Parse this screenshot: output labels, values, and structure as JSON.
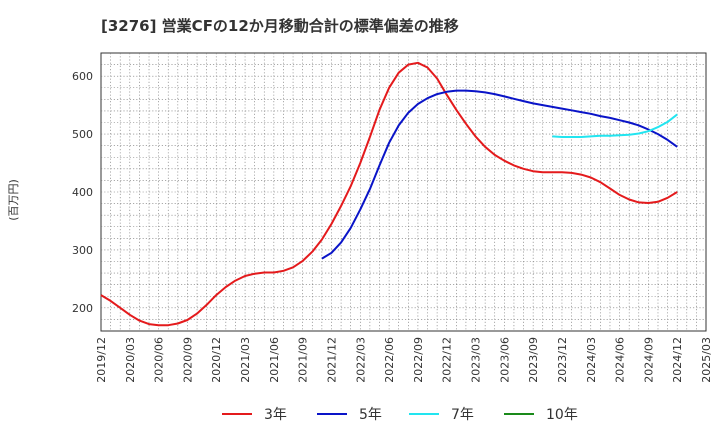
{
  "chart_data": {
    "type": "line",
    "title": "[3276]  営業CFの12か月移動合計の標準偏差の推移",
    "ylabel": "(百万円)",
    "xlabel": "",
    "x_ticks": [
      "2019/12",
      "2020/03",
      "2020/06",
      "2020/09",
      "2020/12",
      "2021/03",
      "2021/06",
      "2021/09",
      "2021/12",
      "2022/03",
      "2022/06",
      "2022/09",
      "2022/12",
      "2023/03",
      "2023/06",
      "2023/09",
      "2023/12",
      "2024/03",
      "2024/06",
      "2024/09",
      "2024/12",
      "2025/03"
    ],
    "y_ticks": [
      200,
      300,
      400,
      500,
      600
    ],
    "ylim": [
      160,
      640
    ],
    "grid": true,
    "legend_position": "bottom",
    "series": [
      {
        "name": "3年",
        "color": "#e41a1c",
        "points": [
          [
            "2019/12",
            222
          ],
          [
            "2020/01",
            212
          ],
          [
            "2020/02",
            200
          ],
          [
            "2020/03",
            188
          ],
          [
            "2020/04",
            178
          ],
          [
            "2020/05",
            172
          ],
          [
            "2020/06",
            170
          ],
          [
            "2020/07",
            170
          ],
          [
            "2020/08",
            173
          ],
          [
            "2020/09",
            179
          ],
          [
            "2020/10",
            190
          ],
          [
            "2020/11",
            205
          ],
          [
            "2020/12",
            222
          ],
          [
            "2021/01",
            236
          ],
          [
            "2021/02",
            247
          ],
          [
            "2021/03",
            255
          ],
          [
            "2021/04",
            259
          ],
          [
            "2021/05",
            261
          ],
          [
            "2021/06",
            261
          ],
          [
            "2021/07",
            264
          ],
          [
            "2021/08",
            270
          ],
          [
            "2021/09",
            281
          ],
          [
            "2021/10",
            297
          ],
          [
            "2021/11",
            318
          ],
          [
            "2021/12",
            345
          ],
          [
            "2022/01",
            376
          ],
          [
            "2022/02",
            410
          ],
          [
            "2022/03",
            450
          ],
          [
            "2022/04",
            495
          ],
          [
            "2022/05",
            542
          ],
          [
            "2022/06",
            580
          ],
          [
            "2022/07",
            606
          ],
          [
            "2022/08",
            620
          ],
          [
            "2022/09",
            623
          ],
          [
            "2022/10",
            615
          ],
          [
            "2022/11",
            596
          ],
          [
            "2022/12",
            568
          ],
          [
            "2023/01",
            542
          ],
          [
            "2023/02",
            518
          ],
          [
            "2023/03",
            496
          ],
          [
            "2023/04",
            478
          ],
          [
            "2023/05",
            464
          ],
          [
            "2023/06",
            454
          ],
          [
            "2023/07",
            446
          ],
          [
            "2023/08",
            440
          ],
          [
            "2023/09",
            436
          ],
          [
            "2023/10",
            434
          ],
          [
            "2023/11",
            434
          ],
          [
            "2023/12",
            434
          ],
          [
            "2024/01",
            433
          ],
          [
            "2024/02",
            430
          ],
          [
            "2024/03",
            425
          ],
          [
            "2024/04",
            417
          ],
          [
            "2024/05",
            406
          ],
          [
            "2024/06",
            395
          ],
          [
            "2024/07",
            387
          ],
          [
            "2024/08",
            382
          ],
          [
            "2024/09",
            381
          ],
          [
            "2024/10",
            383
          ],
          [
            "2024/11",
            390
          ],
          [
            "2024/12",
            400
          ]
        ]
      },
      {
        "name": "5年",
        "color": "#0a14c8",
        "points": [
          [
            "2021/11",
            285
          ],
          [
            "2021/12",
            295
          ],
          [
            "2022/01",
            313
          ],
          [
            "2022/02",
            338
          ],
          [
            "2022/03",
            370
          ],
          [
            "2022/04",
            405
          ],
          [
            "2022/05",
            446
          ],
          [
            "2022/06",
            485
          ],
          [
            "2022/07",
            515
          ],
          [
            "2022/08",
            537
          ],
          [
            "2022/09",
            552
          ],
          [
            "2022/10",
            562
          ],
          [
            "2022/11",
            569
          ],
          [
            "2022/12",
            573
          ],
          [
            "2023/01",
            575
          ],
          [
            "2023/02",
            575
          ],
          [
            "2023/03",
            574
          ],
          [
            "2023/04",
            572
          ],
          [
            "2023/05",
            569
          ],
          [
            "2023/06",
            565
          ],
          [
            "2023/07",
            561
          ],
          [
            "2023/08",
            557
          ],
          [
            "2023/09",
            553
          ],
          [
            "2023/10",
            550
          ],
          [
            "2023/11",
            547
          ],
          [
            "2023/12",
            544
          ],
          [
            "2024/01",
            541
          ],
          [
            "2024/02",
            538
          ],
          [
            "2024/03",
            535
          ],
          [
            "2024/04",
            531
          ],
          [
            "2024/05",
            528
          ],
          [
            "2024/06",
            524
          ],
          [
            "2024/07",
            520
          ],
          [
            "2024/08",
            515
          ],
          [
            "2024/09",
            508
          ],
          [
            "2024/10",
            500
          ],
          [
            "2024/11",
            490
          ],
          [
            "2024/12",
            478
          ]
        ]
      },
      {
        "name": "7年",
        "color": "#22e5f0",
        "points": [
          [
            "2023/11",
            496
          ],
          [
            "2023/12",
            495
          ],
          [
            "2024/01",
            495
          ],
          [
            "2024/02",
            495
          ],
          [
            "2024/03",
            496
          ],
          [
            "2024/04",
            497
          ],
          [
            "2024/05",
            497
          ],
          [
            "2024/06",
            498
          ],
          [
            "2024/07",
            499
          ],
          [
            "2024/08",
            501
          ],
          [
            "2024/09",
            505
          ],
          [
            "2024/10",
            512
          ],
          [
            "2024/11",
            521
          ],
          [
            "2024/12",
            534
          ]
        ]
      },
      {
        "name": "10年",
        "color": "#1a8a1a",
        "points": []
      }
    ]
  }
}
